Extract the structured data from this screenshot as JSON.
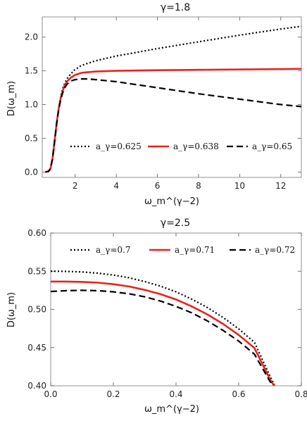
{
  "chart_data": [
    {
      "type": "line",
      "title": "γ=1.8",
      "xlabel": "ω_m^(γ−2)",
      "ylabel": "D(ω_m)",
      "xlim": [
        0.4,
        13
      ],
      "ylim": [
        -0.08,
        2.3
      ],
      "xticks": [
        "2",
        "4",
        "6",
        "8",
        "10",
        "12"
      ],
      "yticks": [
        "0.0",
        "0.5",
        "1.0",
        "1.5",
        "2.0"
      ],
      "legend": "bottom-inside",
      "grid": false,
      "series": [
        {
          "name": "a_γ=0.625",
          "style": "dotted",
          "color": "#000000",
          "x": [
            0.55,
            0.7,
            0.8,
            0.9,
            1.0,
            1.1,
            1.2,
            1.3,
            1.4,
            1.5,
            1.6,
            1.8,
            2.0,
            2.3,
            2.6,
            3,
            4,
            6,
            8,
            10,
            12,
            13
          ],
          "y": [
            0.0,
            0.01,
            0.05,
            0.2,
            0.45,
            0.72,
            0.95,
            1.12,
            1.24,
            1.32,
            1.38,
            1.46,
            1.52,
            1.58,
            1.61,
            1.65,
            1.72,
            1.83,
            1.93,
            2.03,
            2.12,
            2.16
          ]
        },
        {
          "name": "a_γ=0.638",
          "style": "solid",
          "color": "#e8231f",
          "x": [
            0.55,
            0.7,
            0.8,
            0.9,
            1.0,
            1.1,
            1.2,
            1.3,
            1.4,
            1.5,
            1.6,
            1.8,
            2.0,
            2.3,
            2.6,
            3,
            4,
            6,
            8,
            10,
            12,
            13
          ],
          "y": [
            0.0,
            0.01,
            0.05,
            0.2,
            0.45,
            0.72,
            0.94,
            1.1,
            1.21,
            1.29,
            1.34,
            1.4,
            1.44,
            1.47,
            1.48,
            1.49,
            1.5,
            1.51,
            1.515,
            1.52,
            1.525,
            1.53
          ]
        },
        {
          "name": "a_γ=0.65",
          "style": "dashed",
          "color": "#000000",
          "x": [
            0.55,
            0.7,
            0.8,
            0.9,
            1.0,
            1.1,
            1.2,
            1.3,
            1.4,
            1.5,
            1.6,
            1.8,
            2.0,
            2.3,
            2.6,
            3,
            4,
            6,
            8,
            10,
            12,
            13
          ],
          "y": [
            0.0,
            0.01,
            0.05,
            0.2,
            0.45,
            0.71,
            0.93,
            1.08,
            1.18,
            1.25,
            1.3,
            1.35,
            1.37,
            1.38,
            1.38,
            1.37,
            1.34,
            1.25,
            1.16,
            1.08,
            1.0,
            0.97
          ]
        }
      ]
    },
    {
      "type": "line",
      "title": "γ=2.5",
      "xlabel": "ω_m^(γ−2)",
      "ylabel": "D(ω_m)",
      "xlim": [
        0,
        0.8
      ],
      "ylim": [
        0.4,
        0.6
      ],
      "xticks": [
        "0.0",
        "0.2",
        "0.4",
        "0.6",
        "0.8"
      ],
      "yticks": [
        "0.40",
        "0.45",
        "0.50",
        "0.55",
        "0.60"
      ],
      "legend": "top-inside",
      "grid": false,
      "series": [
        {
          "name": "a_γ=0.7",
          "style": "dotted",
          "color": "#000000",
          "x": [
            0,
            0.05,
            0.1,
            0.15,
            0.2,
            0.25,
            0.3,
            0.35,
            0.4,
            0.45,
            0.5,
            0.55,
            0.6,
            0.65,
            0.7,
            0.715
          ],
          "y": [
            0.55,
            0.5498,
            0.549,
            0.5475,
            0.545,
            0.5415,
            0.5365,
            0.5305,
            0.523,
            0.5135,
            0.5025,
            0.4895,
            0.4745,
            0.457,
            0.4125,
            0.4
          ]
        },
        {
          "name": "a_γ=0.71",
          "style": "solid",
          "color": "#e8231f",
          "x": [
            0,
            0.05,
            0.1,
            0.15,
            0.2,
            0.25,
            0.3,
            0.35,
            0.4,
            0.45,
            0.5,
            0.55,
            0.6,
            0.65,
            0.7,
            0.713
          ],
          "y": [
            0.5365,
            0.5365,
            0.536,
            0.535,
            0.533,
            0.53,
            0.5255,
            0.52,
            0.513,
            0.504,
            0.4935,
            0.481,
            0.4665,
            0.4495,
            0.4085,
            0.4
          ]
        },
        {
          "name": "a_γ=0.72",
          "style": "dashed",
          "color": "#000000",
          "x": [
            0,
            0.05,
            0.1,
            0.15,
            0.2,
            0.25,
            0.3,
            0.35,
            0.4,
            0.45,
            0.5,
            0.55,
            0.6,
            0.65,
            0.7,
            0.711
          ],
          "y": [
            0.5235,
            0.5245,
            0.525,
            0.5245,
            0.523,
            0.5205,
            0.5165,
            0.511,
            0.504,
            0.4955,
            0.485,
            0.4725,
            0.4585,
            0.4415,
            0.4055,
            0.4
          ]
        }
      ]
    }
  ]
}
